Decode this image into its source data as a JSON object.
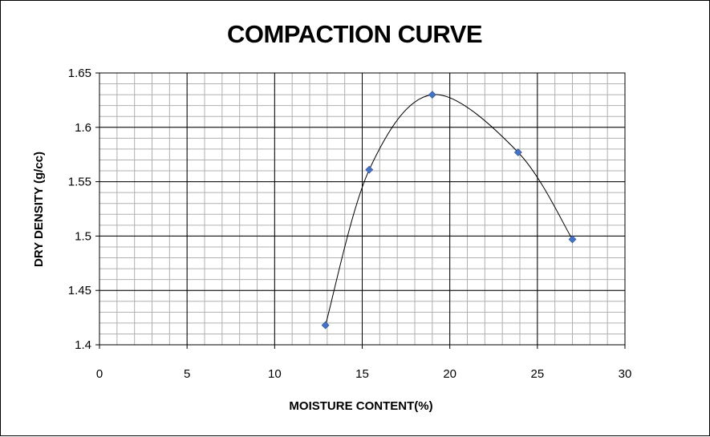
{
  "chart_data": {
    "type": "scatter",
    "title": "COMPACTION CURVE",
    "xlabel": "MOISTURE CONTENT(%)",
    "ylabel": "DRY DENSITY (g/cc)",
    "xlim": [
      0,
      30
    ],
    "ylim": [
      1.4,
      1.65
    ],
    "x_ticks": [
      0,
      5,
      10,
      15,
      20,
      25,
      30
    ],
    "x_tick_labels": [
      "0",
      "5",
      "10",
      "15",
      "20",
      "25",
      "30"
    ],
    "y_ticks": [
      1.4,
      1.45,
      1.5,
      1.55,
      1.6,
      1.65
    ],
    "y_tick_labels": [
      "1.4",
      "1.45",
      "1.5",
      "1.55",
      "1.6",
      "1.65"
    ],
    "grid": true,
    "minor_grid": true,
    "legend": "none",
    "line": "smoothed",
    "series": [
      {
        "x": [
          12.9,
          15.4,
          19.0,
          23.9,
          27.0
        ],
        "y": [
          1.418,
          1.561,
          1.63,
          1.577,
          1.497
        ],
        "marker": "diamond",
        "marker_color": "#4472C4",
        "line_color": "#000000"
      }
    ]
  }
}
